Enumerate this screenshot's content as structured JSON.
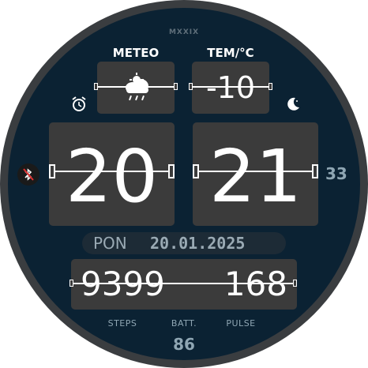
{
  "brand": "MXXIX",
  "weather": {
    "label": "METEO",
    "icon": "cloud-snow-icon"
  },
  "temperature": {
    "label": "TEM/°C",
    "value": "-10"
  },
  "time": {
    "hours": "20",
    "minutes": "21",
    "seconds": "33"
  },
  "date": {
    "day": "PON",
    "date": "20.01.2025"
  },
  "stats": {
    "steps": "9399",
    "pulse": "168",
    "battery": "86",
    "steps_label": "STEPS",
    "battery_label": "BATT.",
    "pulse_label": "PULSE"
  },
  "status_icons": {
    "alarm": "alarm-clock-icon",
    "night": "moon-icon",
    "bluetooth": "bluetooth-off-icon"
  },
  "colors": {
    "background": "#0b2233",
    "card": "#3b3b3b",
    "bezel": "#3a3d40",
    "accent_text": "#8fa6b3"
  }
}
